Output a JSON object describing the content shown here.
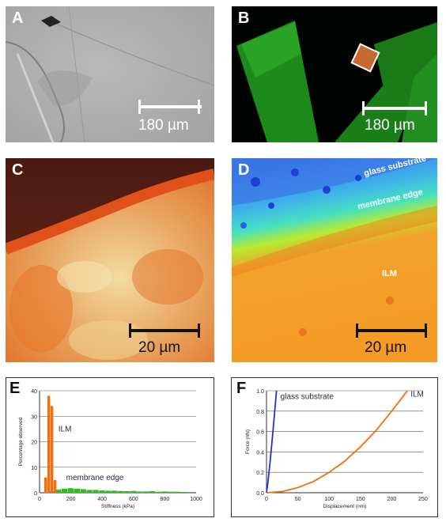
{
  "panels": {
    "a": {
      "label": "A",
      "scale": "180 µm"
    },
    "b": {
      "label": "B",
      "scale": "180 µm"
    },
    "c": {
      "label": "C",
      "scale": "20 µm"
    },
    "d": {
      "label": "D",
      "scale": "20 µm",
      "annotations": {
        "glass": "glass substrate",
        "edge": "membrane edge",
        "ilm": "ILM"
      }
    },
    "e": {
      "label": "E"
    },
    "f": {
      "label": "F"
    }
  },
  "colors": {
    "orange": "#f07010",
    "green": "#33bb22",
    "blue": "#2233cc"
  },
  "chart_data": [
    {
      "type": "bar",
      "xlabel": "Stiffness (kPa)",
      "ylabel": "Percentage observed",
      "xlim": [
        0,
        1000
      ],
      "ylim": [
        0,
        40
      ],
      "xticks": [
        0,
        200,
        400,
        600,
        800,
        1000
      ],
      "yticks": [
        0,
        10,
        20,
        30,
        40
      ],
      "grid": true,
      "annotations": [
        "ILM",
        "membrane edge"
      ],
      "series": [
        {
          "name": "ILM",
          "color": "#f07010",
          "bin_width": 20,
          "x": [
            40,
            60,
            80,
            100
          ],
          "values": [
            6,
            38,
            34,
            5
          ]
        },
        {
          "name": "membrane edge",
          "color": "#33bb22",
          "bin_width": 40,
          "x": [
            40,
            80,
            120,
            160,
            200,
            240,
            280,
            320,
            360,
            400,
            440,
            480,
            520,
            560,
            600,
            640,
            680,
            720,
            760,
            800,
            840,
            880,
            920
          ],
          "values": [
            0.3,
            0.6,
            1.2,
            1.6,
            1.8,
            1.6,
            1.4,
            1.1,
            1.1,
            0.9,
            0.8,
            0.8,
            0.7,
            0.6,
            0.7,
            0.5,
            0.5,
            0.6,
            0.4,
            0.5,
            0.4,
            0.4,
            0.3
          ]
        }
      ]
    },
    {
      "type": "line",
      "xlabel": "Displacement (nm)",
      "ylabel": "Force (nN)",
      "xlim": [
        0,
        250
      ],
      "ylim": [
        0,
        1.0
      ],
      "xticks": [
        0,
        50,
        100,
        150,
        200,
        250
      ],
      "yticks": [
        "0.0",
        "0.2",
        "0.4",
        "0.6",
        "0.8",
        "1.0"
      ],
      "grid": true,
      "series": [
        {
          "name": "glass substrate",
          "color": "#2233cc",
          "x": [
            0,
            2,
            4,
            6,
            8,
            10,
            12,
            14,
            16
          ],
          "y": [
            0,
            0.09,
            0.2,
            0.32,
            0.45,
            0.58,
            0.72,
            0.86,
            1.0
          ]
        },
        {
          "name": "ILM",
          "color": "#f07010",
          "x": [
            0,
            25,
            50,
            75,
            100,
            125,
            150,
            175,
            200,
            225
          ],
          "y": [
            0,
            0.012,
            0.05,
            0.11,
            0.2,
            0.31,
            0.45,
            0.61,
            0.8,
            1.0
          ]
        }
      ]
    }
  ]
}
